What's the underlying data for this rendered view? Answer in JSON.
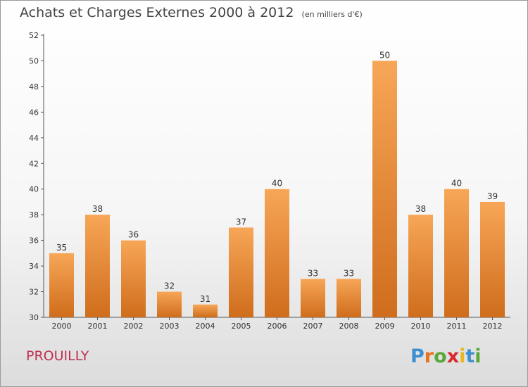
{
  "title": "Achats et Charges Externes 2000 à 2012",
  "subtitle": "(en milliers d'€)",
  "commune": "PROUILLY",
  "logo": {
    "text": "Proxiti",
    "letters": [
      "P",
      "r",
      "o",
      "x",
      "i",
      "t",
      "i"
    ],
    "letter_colors": [
      "#3c8fd0",
      "#e8731e",
      "#5aa83a",
      "#d8292f",
      "#e8b820",
      "#3c8fd0",
      "#5aa83a"
    ]
  },
  "colors": {
    "bar_top": "#f7a657",
    "bar_bottom": "#cf6d1c",
    "axis": "#555555",
    "text": "#444444"
  },
  "chart_data": {
    "type": "bar",
    "title": "Achats et Charges Externes 2000 à 2012",
    "subtitle": "(en milliers d'€)",
    "categories": [
      "2000",
      "2001",
      "2002",
      "2003",
      "2004",
      "2005",
      "2006",
      "2007",
      "2008",
      "2009",
      "2010",
      "2011",
      "2012"
    ],
    "values": [
      35,
      38,
      36,
      32,
      31,
      37,
      40,
      33,
      33,
      50,
      38,
      40,
      39
    ],
    "ylim": [
      30,
      52
    ],
    "yticks": [
      30,
      32,
      34,
      36,
      38,
      40,
      42,
      44,
      46,
      48,
      50,
      52
    ],
    "grid": false,
    "legend": "none"
  }
}
